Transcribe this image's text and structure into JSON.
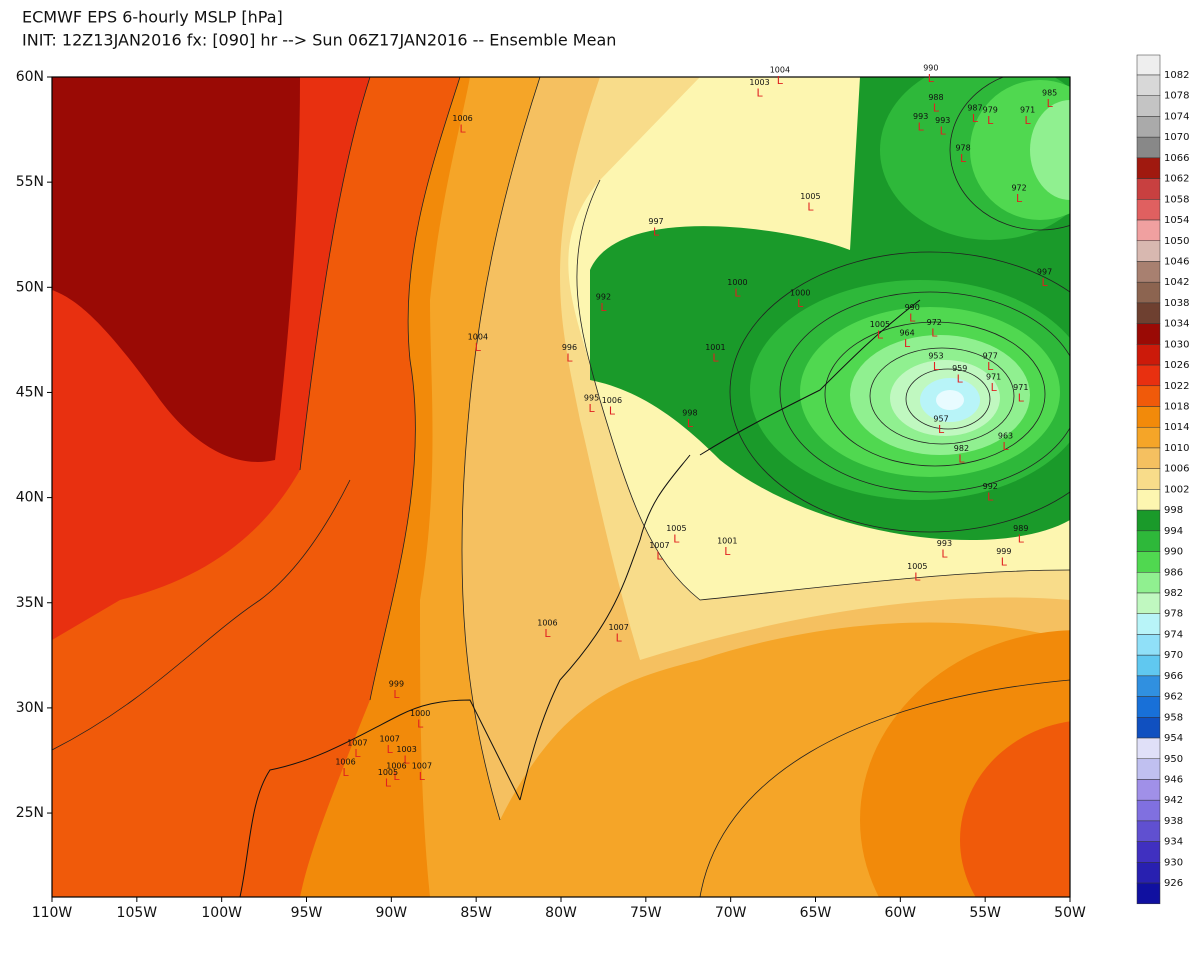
{
  "title": "ECMWF EPS 6-hourly MSLP [hPa]",
  "subtitle": "INIT: 12Z13JAN2016 fx: [090] hr --> Sun 06Z17JAN2016 -- Ensemble Mean",
  "map": {
    "lon_ticks": [
      {
        "value": -110,
        "label": "110W"
      },
      {
        "value": -105,
        "label": "105W"
      },
      {
        "value": -100,
        "label": "100W"
      },
      {
        "value": -95,
        "label": "95W"
      },
      {
        "value": -90,
        "label": "90W"
      },
      {
        "value": -85,
        "label": "85W"
      },
      {
        "value": -80,
        "label": "80W"
      },
      {
        "value": -75,
        "label": "75W"
      },
      {
        "value": -70,
        "label": "70W"
      },
      {
        "value": -65,
        "label": "65W"
      },
      {
        "value": -60,
        "label": "60W"
      },
      {
        "value": -55,
        "label": "55W"
      },
      {
        "value": -50,
        "label": "50W"
      }
    ],
    "lat_ticks": [
      {
        "value": 60,
        "label": "60N"
      },
      {
        "value": 55,
        "label": "55N"
      },
      {
        "value": 50,
        "label": "50N"
      },
      {
        "value": 45,
        "label": "45N"
      },
      {
        "value": 40,
        "label": "40N"
      },
      {
        "value": 35,
        "label": "35N"
      },
      {
        "value": 30,
        "label": "30N"
      },
      {
        "value": 25,
        "label": "25N"
      }
    ],
    "low_symbol": "L",
    "lows": [
      {
        "label": 1006,
        "lon": -85.8,
        "lat": 57.6
      },
      {
        "label": 990,
        "lon": -58.2,
        "lat": 60.0
      },
      {
        "label": 988,
        "lon": -57.9,
        "lat": 58.6
      },
      {
        "label": 993,
        "lon": -58.8,
        "lat": 57.7
      },
      {
        "label": 993,
        "lon": -57.5,
        "lat": 57.5
      },
      {
        "label": 987,
        "lon": -55.6,
        "lat": 58.1
      },
      {
        "label": 979,
        "lon": -54.7,
        "lat": 58.0
      },
      {
        "label": 971,
        "lon": -52.5,
        "lat": 58.0
      },
      {
        "label": 985,
        "lon": -51.2,
        "lat": 58.8
      },
      {
        "label": 978,
        "lon": -56.3,
        "lat": 56.2
      },
      {
        "label": 972,
        "lon": -53.0,
        "lat": 54.3
      },
      {
        "label": 997,
        "lon": -51.5,
        "lat": 50.3
      },
      {
        "label": 997,
        "lon": -74.4,
        "lat": 52.7
      },
      {
        "label": 992,
        "lon": -77.5,
        "lat": 49.1
      },
      {
        "label": 1000,
        "lon": -69.6,
        "lat": 49.8
      },
      {
        "label": 1000,
        "lon": -65.9,
        "lat": 49.3
      },
      {
        "label": 990,
        "lon": -59.3,
        "lat": 48.6
      },
      {
        "label": 972,
        "lon": -58.0,
        "lat": 47.9
      },
      {
        "label": 1005,
        "lon": -61.2,
        "lat": 47.8
      },
      {
        "label": 964,
        "lon": -59.6,
        "lat": 47.4
      },
      {
        "label": 953,
        "lon": -57.9,
        "lat": 46.3
      },
      {
        "label": 959,
        "lon": -56.5,
        "lat": 45.7
      },
      {
        "label": 977,
        "lon": -54.7,
        "lat": 46.3
      },
      {
        "label": 971,
        "lon": -54.5,
        "lat": 45.3
      },
      {
        "label": 971,
        "lon": -52.9,
        "lat": 44.8
      },
      {
        "label": 957,
        "lon": -57.6,
        "lat": 43.3
      },
      {
        "label": 963,
        "lon": -53.8,
        "lat": 42.5
      },
      {
        "label": 982,
        "lon": -56.4,
        "lat": 41.9
      },
      {
        "label": 992,
        "lon": -54.7,
        "lat": 40.1
      },
      {
        "label": 989,
        "lon": -52.9,
        "lat": 38.1
      },
      {
        "label": 993,
        "lon": -57.4,
        "lat": 37.4
      },
      {
        "label": 999,
        "lon": -53.9,
        "lat": 37.0
      },
      {
        "label": 1005,
        "lon": -59.0,
        "lat": 36.3
      },
      {
        "label": 1005,
        "lon": -73.2,
        "lat": 38.1
      },
      {
        "label": 1007,
        "lon": -74.2,
        "lat": 37.3
      },
      {
        "label": 1001,
        "lon": -70.2,
        "lat": 37.5
      },
      {
        "label": 1006,
        "lon": -80.8,
        "lat": 33.6
      },
      {
        "label": 1007,
        "lon": -76.6,
        "lat": 33.4
      },
      {
        "label": 1004,
        "lon": -84.9,
        "lat": 47.2
      },
      {
        "label": 996,
        "lon": -79.5,
        "lat": 46.7
      },
      {
        "label": 995,
        "lon": -78.2,
        "lat": 44.3
      },
      {
        "label": 1006,
        "lon": -77.0,
        "lat": 44.2
      },
      {
        "label": 1001,
        "lon": -70.9,
        "lat": 46.7
      },
      {
        "label": 998,
        "lon": -72.4,
        "lat": 43.6
      },
      {
        "label": 999,
        "lon": -89.7,
        "lat": 30.7
      },
      {
        "label": 1000,
        "lon": -88.3,
        "lat": 29.3
      },
      {
        "label": 1007,
        "lon": -92.0,
        "lat": 27.9
      },
      {
        "label": 1006,
        "lon": -92.7,
        "lat": 27.0
      },
      {
        "label": 1007,
        "lon": -90.1,
        "lat": 28.1
      },
      {
        "label": 1003,
        "lon": -89.1,
        "lat": 27.6
      },
      {
        "label": 1006,
        "lon": -89.7,
        "lat": 26.8
      },
      {
        "label": 1005,
        "lon": -90.2,
        "lat": 26.5
      },
      {
        "label": 1007,
        "lon": -88.2,
        "lat": 26.8
      },
      {
        "label": 1004,
        "lon": -67.1,
        "lat": 59.9
      },
      {
        "label": 1003,
        "lon": -68.3,
        "lat": 59.3
      },
      {
        "label": 1005,
        "lon": -65.3,
        "lat": 53.9
      }
    ]
  },
  "colorbar": {
    "levels": [
      1082,
      1078,
      1074,
      1070,
      1066,
      1062,
      1058,
      1054,
      1050,
      1046,
      1042,
      1038,
      1034,
      1030,
      1026,
      1022,
      1018,
      1014,
      1010,
      1006,
      1002,
      998,
      994,
      990,
      986,
      982,
      978,
      974,
      970,
      966,
      962,
      958,
      954,
      950,
      946,
      942,
      938,
      934,
      930,
      926
    ],
    "colors": [
      "#eeeeee",
      "#d8d8d8",
      "#c4c4c4",
      "#aaaaaa",
      "#888888",
      "#a0190f",
      "#c84040",
      "#e06060",
      "#f0a0a0",
      "#d8b8b0",
      "#a88070",
      "#8c6450",
      "#6e4030",
      "#9a0a05",
      "#cc1a0a",
      "#e83010",
      "#f05a0a",
      "#f28a0a",
      "#f5a528",
      "#f5c060",
      "#f8dc8a",
      "#fdf6b0",
      "#1a9a2a",
      "#2eb83a",
      "#50d850",
      "#90f090",
      "#c0f8c0",
      "#b8f4f8",
      "#90e0f8",
      "#60c8f0",
      "#3090e0",
      "#1870d8",
      "#1050c0",
      "#e0e0f8",
      "#c0c0f0",
      "#a090e8",
      "#8070e0",
      "#6050d0",
      "#4030c0",
      "#2820b0",
      "#1010a0"
    ]
  }
}
